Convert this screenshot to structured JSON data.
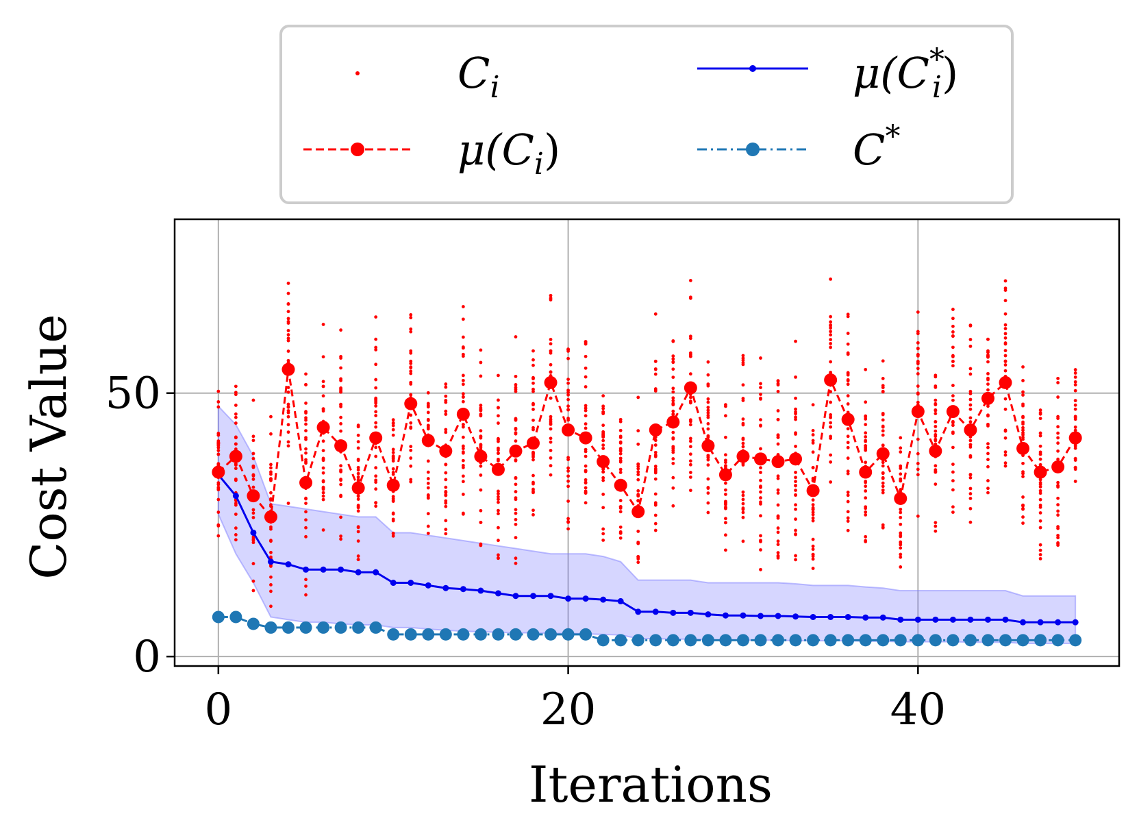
{
  "chart_data": {
    "type": "scatter",
    "xlabel": "Iterations",
    "ylabel": "Cost Value",
    "xlim": [
      -2.5,
      51.5
    ],
    "ylim": [
      -1.8,
      83
    ],
    "x_ticks": [
      0,
      20,
      40
    ],
    "y_ticks": [
      0,
      50
    ],
    "grid": true,
    "legend_position": "top-center",
    "legend": [
      {
        "key": "Ci",
        "label": "C_i",
        "style": "red dots"
      },
      {
        "key": "mu_star",
        "label": "μ(C_i*)",
        "style": "blue solid line with small markers"
      },
      {
        "key": "mu",
        "label": "μ(C_i)",
        "style": "red dashed line with markers"
      },
      {
        "key": "cstar",
        "label": "C*",
        "style": "steelblue dash-dot line with markers"
      }
    ],
    "colors": {
      "Ci": "#ff0000",
      "mu": "#ff0000",
      "mu_star": "#0000ee",
      "band": "#8080ff",
      "cstar": "#1f77b4",
      "grid": "#b0b0b0",
      "legend_border": "#cccccc"
    },
    "mu_Ci": [
      35,
      38,
      30.5,
      26.5,
      54.5,
      33,
      43.5,
      40,
      32,
      41.5,
      32.5,
      48,
      41,
      39,
      46,
      38,
      35.5,
      39,
      40.5,
      52,
      43,
      41.5,
      37,
      32.5,
      27.5,
      43,
      44.5,
      51,
      40,
      34.5,
      38,
      37.5,
      37,
      37.5,
      31.5,
      52.5,
      45,
      35,
      38.5,
      30,
      46.5,
      39,
      46.5,
      43,
      49,
      52,
      39.5,
      35,
      36,
      41.5
    ],
    "mu_Ci_star": [
      34.5,
      30.5,
      23.5,
      18,
      17.5,
      16.5,
      16.5,
      16.5,
      16,
      16,
      14,
      14,
      13.5,
      13,
      12.8,
      12.5,
      12,
      11.5,
      11.5,
      11.5,
      11,
      11,
      10.8,
      10.5,
      8.5,
      8.5,
      8.3,
      8.3,
      8,
      7.8,
      7.8,
      7.7,
      7.7,
      7.6,
      7.5,
      7.5,
      7.5,
      7.4,
      7.4,
      7,
      7,
      7,
      7,
      7,
      7,
      7,
      6.5,
      6.5,
      6.5,
      6.5
    ],
    "band_upper": [
      47.5,
      44,
      38,
      29,
      28.5,
      28,
      27.5,
      27,
      26.5,
      26.5,
      23.5,
      23.5,
      23,
      22.5,
      22,
      21.5,
      21,
      20.5,
      20,
      19.5,
      19.5,
      19.5,
      19,
      18,
      14.5,
      14.5,
      14.5,
      14.5,
      14,
      14,
      14,
      14,
      14,
      13.8,
      13.5,
      13.5,
      13.5,
      13.2,
      13,
      12.5,
      12.5,
      12.5,
      12.5,
      12.5,
      12.5,
      12.5,
      11.5,
      11.5,
      11.5,
      11.5
    ],
    "band_lower": [
      27,
      19.5,
      14,
      7.5,
      7,
      6.5,
      6.5,
      6.2,
      6,
      6,
      5.5,
      5.5,
      5.2,
      5,
      4.8,
      4.7,
      4.6,
      4.5,
      4.5,
      4.4,
      4.4,
      4.3,
      4.2,
      4.1,
      3.4,
      3.4,
      3.3,
      3.3,
      3.2,
      3.1,
      3.1,
      3.1,
      3.1,
      3,
      3,
      3,
      3,
      2.9,
      2.9,
      2.8,
      2.8,
      2.8,
      2.8,
      2.7,
      2.7,
      2.7,
      2.5,
      2.5,
      2.5,
      2.5
    ],
    "C_star": [
      7.5,
      7.5,
      6.2,
      5.5,
      5.5,
      5.5,
      5.5,
      5.5,
      5.5,
      5.5,
      4.2,
      4.2,
      4.2,
      4.2,
      4.2,
      4.2,
      4.2,
      4.2,
      4.2,
      4.2,
      4.2,
      4.2,
      3.1,
      3.1,
      3.1,
      3.1,
      3.1,
      3.1,
      3.1,
      3.1,
      3.1,
      3.1,
      3.1,
      3.1,
      3.1,
      3.1,
      3.1,
      3.1,
      3.1,
      3.1,
      3.1,
      3.1,
      3.1,
      3.1,
      3.1,
      3.1,
      3.1,
      3.1,
      3.1,
      3.1
    ],
    "Ci_spread": [
      20,
      20,
      24,
      23,
      28,
      25,
      27,
      27,
      22,
      24,
      16,
      22,
      20,
      22,
      24,
      22,
      24,
      24,
      22,
      22,
      22,
      23,
      22,
      17,
      25,
      25,
      24,
      23,
      19,
      16,
      25,
      24,
      24,
      26,
      20,
      23,
      25,
      22,
      19,
      16,
      23,
      21,
      22,
      23,
      23,
      22,
      24,
      23,
      23,
      21
    ]
  }
}
